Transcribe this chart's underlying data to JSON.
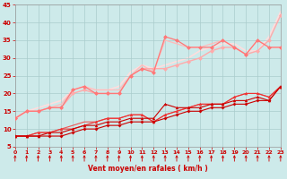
{
  "xlabel": "Vent moyen/en rafales ( km/h )",
  "xlim": [
    0,
    23
  ],
  "ylim": [
    5,
    45
  ],
  "yticks": [
    5,
    10,
    15,
    20,
    25,
    30,
    35,
    40,
    45
  ],
  "xticks": [
    0,
    1,
    2,
    3,
    4,
    5,
    6,
    7,
    8,
    9,
    10,
    11,
    12,
    13,
    14,
    15,
    16,
    17,
    18,
    19,
    20,
    21,
    22,
    23
  ],
  "bg_color": "#cdeaea",
  "grid_color": "#aacccc",
  "series": [
    {
      "x": [
        0,
        1,
        2,
        3,
        4,
        5,
        6,
        7,
        8,
        9,
        10,
        11,
        12,
        13,
        14,
        15,
        16,
        17,
        18,
        19,
        20,
        21,
        22,
        23
      ],
      "y": [
        8,
        8,
        8,
        8,
        8,
        9,
        10,
        10,
        11,
        11,
        12,
        12,
        12,
        13,
        14,
        15,
        15,
        16,
        16,
        17,
        17,
        18,
        18,
        22
      ],
      "color": "#cc0000",
      "lw": 0.8,
      "marker": "D",
      "ms": 2.0,
      "zorder": 5
    },
    {
      "x": [
        0,
        1,
        2,
        3,
        4,
        5,
        6,
        7,
        8,
        9,
        10,
        11,
        12,
        13,
        14,
        15,
        16,
        17,
        18,
        19,
        20,
        21,
        22,
        23
      ],
      "y": [
        8,
        8,
        8,
        9,
        9,
        10,
        11,
        11,
        12,
        12,
        13,
        13,
        13,
        17,
        16,
        16,
        16,
        17,
        17,
        18,
        18,
        19,
        18,
        22
      ],
      "color": "#cc0000",
      "lw": 0.8,
      "marker": "^",
      "ms": 2.5,
      "zorder": 5
    },
    {
      "x": [
        0,
        1,
        2,
        3,
        4,
        5,
        6,
        7,
        8,
        9,
        10,
        11,
        12,
        13,
        14,
        15,
        16,
        17,
        18,
        19,
        20,
        21,
        22,
        23
      ],
      "y": [
        8,
        8,
        9,
        9,
        10,
        10,
        11,
        12,
        13,
        13,
        14,
        14,
        12,
        14,
        15,
        16,
        17,
        17,
        17,
        19,
        20,
        20,
        19,
        22
      ],
      "color": "#ee3333",
      "lw": 0.8,
      "marker": "^",
      "ms": 2.5,
      "zorder": 4
    },
    {
      "x": [
        0,
        1,
        2,
        3,
        4,
        5,
        6,
        7,
        8,
        9,
        10,
        11,
        12,
        13,
        14,
        15,
        16,
        17,
        18,
        19,
        20,
        21,
        22,
        23
      ],
      "y": [
        8,
        8,
        9,
        9,
        10,
        11,
        12,
        12,
        13,
        13,
        14,
        14,
        12,
        14,
        15,
        16,
        17,
        17,
        17,
        19,
        20,
        20,
        19,
        22
      ],
      "color": "#ee5555",
      "lw": 0.8,
      "marker": null,
      "ms": 0,
      "zorder": 3
    },
    {
      "x": [
        0,
        1,
        2,
        3,
        4,
        5,
        6,
        7,
        8,
        9,
        10,
        11,
        12,
        13,
        14,
        15,
        16,
        17,
        18,
        19,
        20,
        21,
        22,
        23
      ],
      "y": [
        13,
        15,
        15,
        16,
        16,
        20,
        21,
        20,
        20,
        20,
        25,
        27,
        27,
        27,
        28,
        29,
        30,
        32,
        33,
        33,
        31,
        32,
        35,
        42
      ],
      "color": "#ffaaaa",
      "lw": 1.0,
      "marker": "D",
      "ms": 2.5,
      "zorder": 6
    },
    {
      "x": [
        0,
        1,
        2,
        3,
        4,
        5,
        6,
        7,
        8,
        9,
        10,
        11,
        12,
        13,
        14,
        15,
        16,
        17,
        18,
        19,
        20,
        21,
        22,
        23
      ],
      "y": [
        13,
        15,
        15,
        16,
        16,
        21,
        22,
        20,
        20,
        20,
        25,
        27,
        26,
        36,
        35,
        33,
        33,
        33,
        35,
        33,
        31,
        35,
        33,
        33
      ],
      "color": "#ff7777",
      "lw": 0.9,
      "marker": "D",
      "ms": 2.5,
      "zorder": 6
    },
    {
      "x": [
        0,
        1,
        2,
        3,
        4,
        5,
        6,
        7,
        8,
        9,
        10,
        11,
        12,
        13,
        14,
        15,
        16,
        17,
        18,
        19,
        20,
        21,
        22,
        23
      ],
      "y": [
        13,
        15,
        15,
        16,
        17,
        21,
        22,
        21,
        21,
        21,
        25,
        28,
        26,
        35,
        34,
        33,
        33,
        34,
        35,
        33,
        31,
        35,
        33,
        33
      ],
      "color": "#ffbbbb",
      "lw": 0.9,
      "marker": null,
      "ms": 0,
      "zorder": 2
    },
    {
      "x": [
        0,
        1,
        2,
        3,
        4,
        5,
        6,
        7,
        8,
        9,
        10,
        11,
        12,
        13,
        14,
        15,
        16,
        17,
        18,
        19,
        20,
        21,
        22,
        23
      ],
      "y": [
        13,
        15,
        16,
        17,
        18,
        21,
        22,
        21,
        21,
        22,
        26,
        28,
        27,
        28,
        29,
        30,
        32,
        33,
        34,
        34,
        32,
        32,
        36,
        43
      ],
      "color": "#ffdddd",
      "lw": 1.2,
      "marker": null,
      "ms": 0,
      "zorder": 1
    }
  ],
  "arrow_color": "#cc0000"
}
